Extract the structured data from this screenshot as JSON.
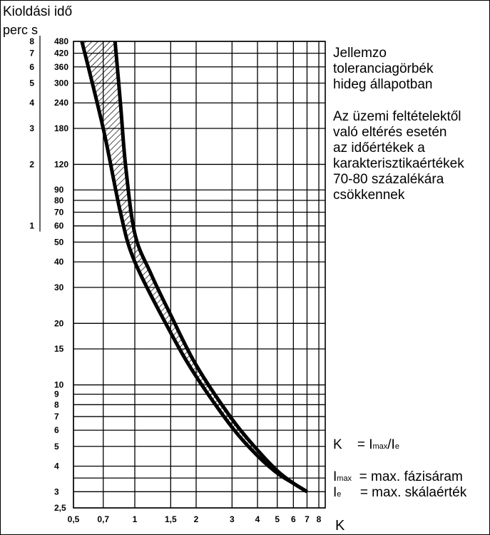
{
  "chart_data": {
    "type": "line",
    "y_axis": {
      "title": "Kioldási idő",
      "units_label": "perc   s",
      "scale": "log",
      "ylim_seconds": [
        150,
        500
      ],
      "ticks_seconds": [
        150,
        180,
        210,
        240,
        300,
        360,
        420,
        480,
        540,
        600,
        900,
        1200,
        1800,
        2400,
        3000,
        3600,
        4200,
        4800,
        5400,
        7200,
        10800,
        14400,
        18000,
        21600,
        25200,
        28800
      ],
      "ticks_minutes": [
        2.5,
        3,
        3.5,
        4,
        5,
        6,
        7,
        8,
        9,
        10,
        15,
        20,
        30,
        40,
        50,
        60,
        70,
        80,
        90,
        120,
        180,
        240,
        300,
        360,
        420,
        480
      ]
    },
    "y_minute_labels": [
      "2,5",
      "3",
      "4",
      "5",
      "6",
      "7",
      "8",
      "9",
      "10",
      "15",
      "20",
      "30",
      "40",
      "50",
      "60",
      "70",
      "80",
      "90",
      "120",
      "180",
      "240",
      "300",
      "360",
      "420",
      "480"
    ],
    "y_minute_label_values": [
      2.5,
      3,
      4,
      5,
      6,
      7,
      8,
      9,
      10,
      15,
      20,
      30,
      40,
      50,
      60,
      70,
      80,
      90,
      120,
      180,
      240,
      300,
      360,
      420,
      480
    ],
    "y_hour_labels": [
      "1",
      "2",
      "3",
      "4",
      "5",
      "6",
      "7",
      "8"
    ],
    "y_hour_label_values": [
      60,
      120,
      180,
      240,
      300,
      360,
      420,
      480
    ],
    "x_axis": {
      "label": "K",
      "scale": "log",
      "ticks": [
        0.5,
        0.7,
        1,
        1.5,
        2,
        3,
        4,
        5,
        6,
        7,
        8
      ],
      "tick_labels": [
        "0,5",
        "0,7",
        "1",
        "1,5",
        "2",
        "3",
        "4",
        "5",
        "6",
        "7",
        "8"
      ]
    },
    "series": [
      {
        "points": [
          [
            0.55,
            480
          ],
          [
            0.7,
            180
          ],
          [
            0.85,
            70
          ],
          [
            1.0,
            40
          ],
          [
            1.5,
            18
          ],
          [
            2.0,
            11
          ],
          [
            3.0,
            6.2
          ],
          [
            4.0,
            4.5
          ],
          [
            5.0,
            3.7
          ],
          [
            6.0,
            3.3
          ],
          [
            7.0,
            3.0
          ]
        ]
      },
      {
        "points": [
          [
            0.8,
            480
          ],
          [
            0.85,
            240
          ],
          [
            0.9,
            120
          ],
          [
            1.0,
            55
          ],
          [
            1.2,
            35
          ],
          [
            1.5,
            22
          ],
          [
            2.0,
            12.5
          ],
          [
            3.0,
            6.8
          ],
          [
            4.0,
            4.8
          ],
          [
            5.0,
            3.8
          ],
          [
            6.0,
            3.3
          ],
          [
            7.0,
            3.0
          ]
        ]
      }
    ],
    "band": "hatched area between the two curves",
    "grid": true,
    "legend": "none"
  },
  "description": [
    "Jellemzo",
    "toleranciagörbék",
    "hideg állapotban"
  ],
  "note": [
    "Az üzemi feltételektől",
    "való eltérés esetén",
    "az időértékek a",
    "karakterisztikaértékek",
    "70-80 százalékára",
    "csökkennek"
  ],
  "formulas": {
    "k_def": {
      "lhs": "K",
      "eq": "=",
      "r1": "I",
      "r1sub": "max",
      "slash": "/",
      "r2": "I",
      "r2sub": "e"
    },
    "imax": {
      "lhs": "I",
      "lhssub": "max",
      "text": "= max. fázisáram"
    },
    "ie": {
      "lhs": "I",
      "lhssub": "e",
      "text": "= max. skálaérték"
    }
  },
  "colors": {
    "ink": "#000000",
    "background": "#ffffff"
  }
}
